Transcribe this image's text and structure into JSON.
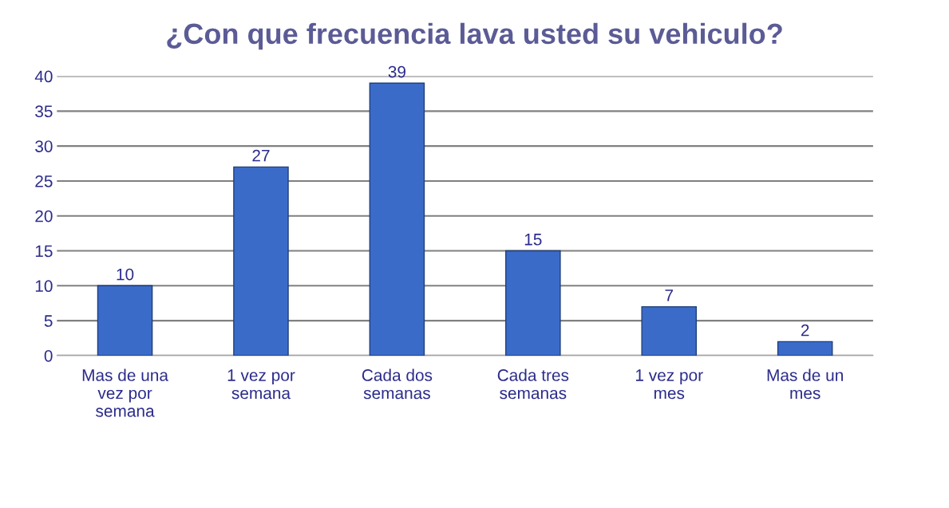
{
  "chart_data": {
    "type": "bar",
    "title": "¿Con que frecuencia lava usted su vehiculo?",
    "categories": [
      "Mas de una\nvez por\nsemana",
      "1 vez por\nsemana",
      "Cada dos\nsemanas",
      "Cada tres\nsemanas",
      "1 vez por\nmes",
      "Mas de un\nmes"
    ],
    "values": [
      10,
      27,
      39,
      15,
      7,
      2
    ],
    "color": "#3b6bc9",
    "ylim": [
      0,
      40
    ],
    "yticks": [
      0,
      5,
      10,
      15,
      20,
      25,
      30,
      35,
      40
    ],
    "grid": "y",
    "data_labels": true
  }
}
